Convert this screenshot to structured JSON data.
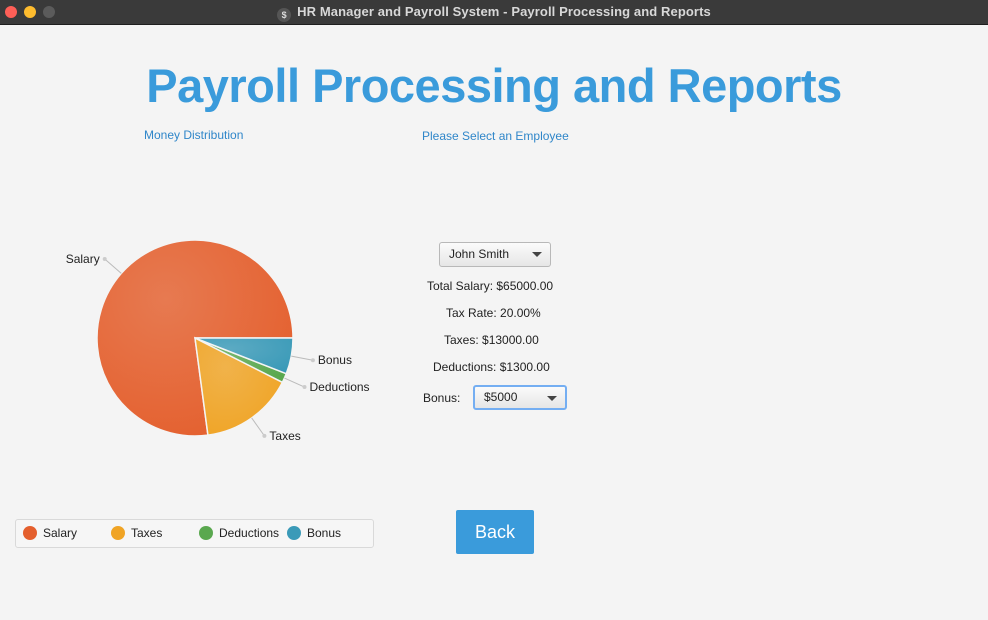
{
  "window": {
    "title": "HR Manager and Payroll System - Payroll Processing and Reports",
    "app_icon": "$"
  },
  "page": {
    "title": "Payroll Processing and Reports",
    "money_caption": "Money Distribution",
    "select_caption": "Please Select an Employee"
  },
  "employee": {
    "selected": "John Smith",
    "total_salary": "Total Salary: $65000.00",
    "tax_rate": "Tax Rate: 20.00%",
    "taxes": "Taxes: $13000.00",
    "deductions": "Deductions: $1300.00",
    "bonus_label": "Bonus:",
    "bonus_selected": "$5000"
  },
  "buttons": {
    "back": "Back"
  },
  "chart_data": {
    "type": "pie",
    "title": "",
    "labels": [
      "Salary",
      "Taxes",
      "Deductions",
      "Bonus"
    ],
    "values": [
      65000,
      13000,
      1300,
      5000
    ],
    "colors": [
      "#e45f2d",
      "#f0a425",
      "#5aa84f",
      "#3a9ab8"
    ],
    "legend": "bottom"
  }
}
